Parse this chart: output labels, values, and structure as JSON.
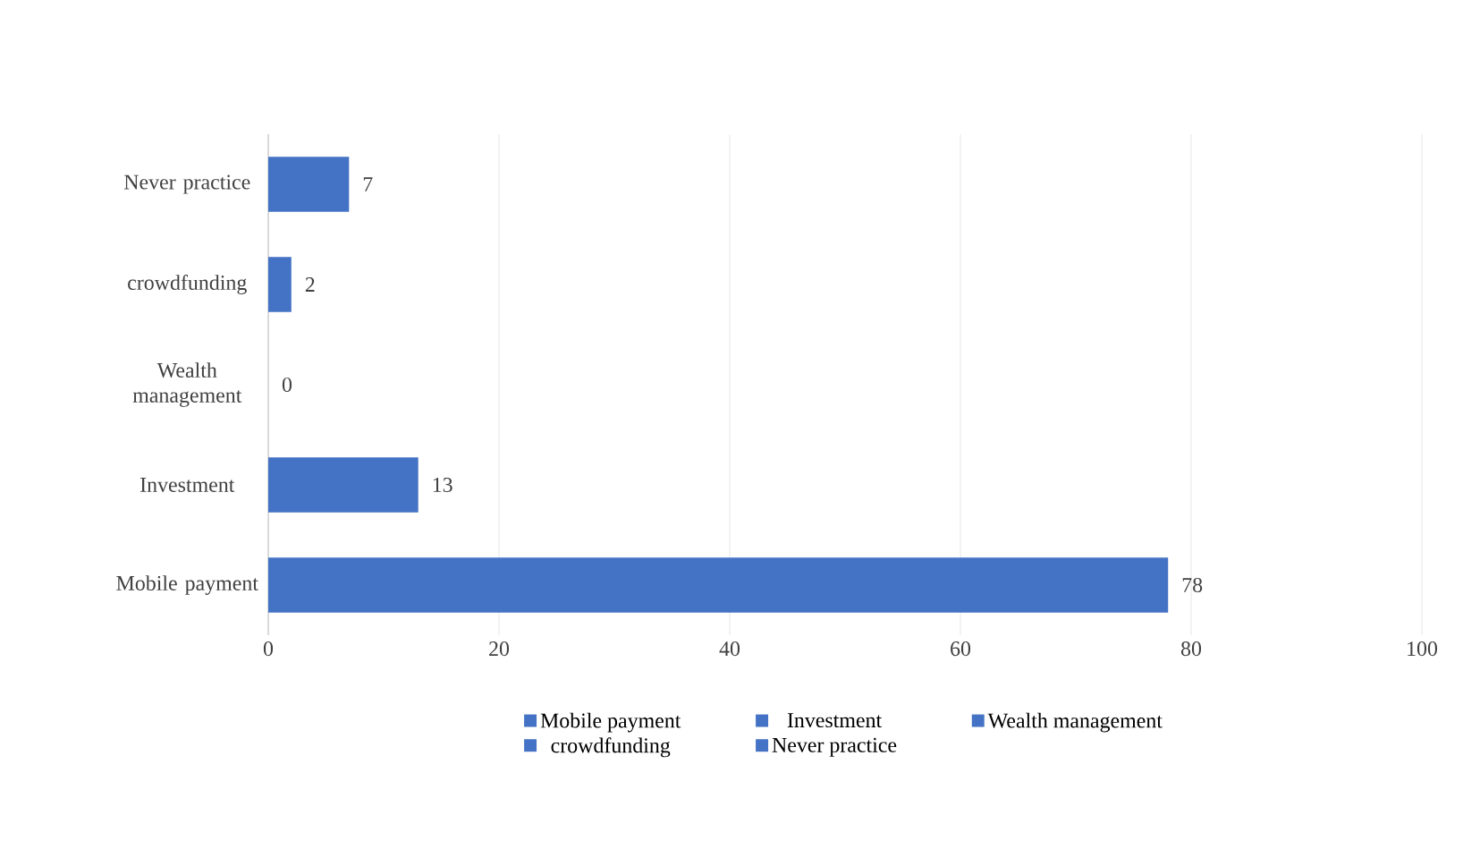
{
  "chart_data": {
    "type": "bar",
    "orientation": "horizontal",
    "stacked": true,
    "categories": [
      "Never practice",
      "crowdfunding",
      "Wealth management",
      "Investment",
      "Mobile payment"
    ],
    "series": [
      {
        "name": "Mobile payment",
        "color": "#4472c4",
        "values": [
          null,
          null,
          null,
          null,
          78
        ]
      },
      {
        "name": "Investment",
        "color": "#4472c4",
        "values": [
          null,
          null,
          null,
          13,
          null
        ]
      },
      {
        "name": "Wealth management",
        "color": "#4472c4",
        "values": [
          null,
          null,
          0,
          null,
          null
        ]
      },
      {
        "name": "crowdfunding",
        "color": "#4472c4",
        "values": [
          null,
          2,
          null,
          null,
          null
        ]
      },
      {
        "name": "Never practice",
        "color": "#4472c4",
        "values": [
          7,
          null,
          null,
          null,
          null
        ]
      }
    ],
    "xlim": [
      0,
      100
    ],
    "xticks": [
      0,
      20,
      40,
      60,
      80,
      100
    ],
    "grid": "x",
    "data_labels": true,
    "legend": "bottom"
  }
}
